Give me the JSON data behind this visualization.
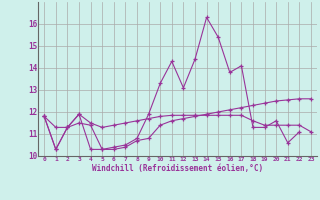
{
  "xlabel": "Windchill (Refroidissement éolien,°C)",
  "x_values": [
    0,
    1,
    2,
    3,
    4,
    5,
    6,
    7,
    8,
    9,
    10,
    11,
    12,
    13,
    14,
    15,
    16,
    17,
    18,
    19,
    20,
    21,
    22,
    23
  ],
  "line1_y": [
    11.8,
    10.3,
    11.3,
    11.9,
    10.3,
    10.3,
    10.4,
    10.5,
    10.8,
    11.9,
    13.3,
    14.3,
    13.1,
    14.4,
    16.3,
    15.4,
    13.8,
    14.1,
    11.3,
    11.3,
    11.6,
    10.6,
    11.1,
    null
  ],
  "line2_y": [
    11.8,
    11.3,
    11.3,
    11.9,
    11.5,
    11.3,
    11.4,
    11.5,
    11.6,
    11.7,
    11.8,
    11.85,
    11.85,
    11.85,
    11.85,
    11.85,
    11.85,
    11.85,
    11.6,
    11.4,
    11.4,
    11.4,
    11.4,
    11.1
  ],
  "line3_y": [
    11.8,
    10.3,
    11.3,
    11.5,
    11.4,
    10.3,
    10.3,
    10.4,
    10.7,
    10.8,
    11.4,
    11.6,
    11.7,
    11.8,
    11.9,
    12.0,
    12.1,
    12.2,
    12.3,
    12.4,
    12.5,
    12.55,
    12.6,
    12.6
  ],
  "line4_y": [
    null,
    null,
    null,
    null,
    null,
    null,
    null,
    null,
    null,
    null,
    null,
    null,
    null,
    null,
    null,
    null,
    null,
    null,
    null,
    null,
    null,
    null,
    null,
    null
  ],
  "line_color": "#993399",
  "bg_color": "#cff0eb",
  "grid_color": "#aaaaaa",
  "ylim": [
    10,
    17
  ],
  "xlim": [
    -0.5,
    23.5
  ],
  "yticks": [
    10,
    11,
    12,
    13,
    14,
    15,
    16
  ],
  "xticks": [
    0,
    1,
    2,
    3,
    4,
    5,
    6,
    7,
    8,
    9,
    10,
    11,
    12,
    13,
    14,
    15,
    16,
    17,
    18,
    19,
    20,
    21,
    22,
    23
  ]
}
